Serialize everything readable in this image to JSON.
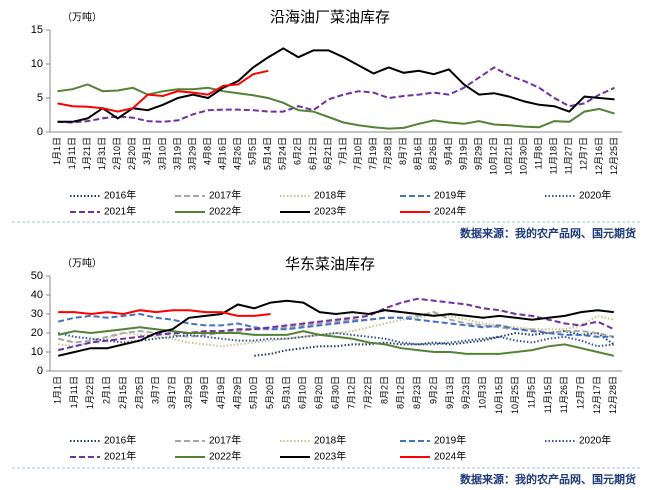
{
  "chart_data": [
    {
      "type": "line",
      "title": "沿海油厂菜油库存",
      "y_label": "（万吨）",
      "source": "数据来源：我的农产品网、国元期货",
      "categories": [
        "1月1日",
        "1月11日",
        "1月21日",
        "1月31日",
        "2月10日",
        "2月20日",
        "3月1日",
        "3月10日",
        "3月19日",
        "3月29日",
        "4月8日",
        "4月16日",
        "4月26日",
        "5月5日",
        "5月14日",
        "5月24日",
        "6月2日",
        "6月12日",
        "6月21日",
        "7月1日",
        "7月10日",
        "7月19日",
        "7月28日",
        "8月7日",
        "8月16日",
        "8月26日",
        "9月4日",
        "9月19日",
        "9月29日",
        "10月12日",
        "10月21日",
        "10月30日",
        "11月8日",
        "11月18日",
        "11月27日",
        "12月7日",
        "12月16日",
        "12月25日"
      ],
      "ylim": [
        0,
        15
      ],
      "yticks": [
        0,
        5,
        10,
        15
      ],
      "series": [
        {
          "name": "2016年",
          "color": "#1f3864",
          "style": "dotted",
          "values": [
            null,
            null,
            null,
            null,
            null,
            null,
            null,
            null,
            null,
            null,
            null,
            null,
            null,
            null,
            null,
            null,
            null,
            null,
            null,
            null,
            null,
            null,
            null,
            null,
            null,
            null,
            null,
            null,
            null,
            null,
            null,
            null,
            null,
            null,
            null,
            null,
            null,
            null
          ]
        },
        {
          "name": "2017年",
          "color": "#a6a6a6",
          "style": "dashed",
          "values": [
            null,
            null,
            null,
            null,
            null,
            null,
            null,
            null,
            null,
            null,
            null,
            null,
            null,
            null,
            null,
            null,
            null,
            null,
            null,
            null,
            null,
            null,
            null,
            null,
            null,
            null,
            null,
            null,
            null,
            null,
            null,
            null,
            null,
            null,
            null,
            null,
            null,
            null
          ]
        },
        {
          "name": "2018年",
          "color": "#c9c08a",
          "style": "dotted",
          "values": [
            null,
            null,
            null,
            null,
            null,
            null,
            null,
            null,
            null,
            null,
            null,
            null,
            null,
            null,
            null,
            null,
            null,
            null,
            null,
            null,
            null,
            null,
            null,
            null,
            null,
            null,
            null,
            null,
            null,
            null,
            null,
            null,
            null,
            null,
            null,
            null,
            null,
            null
          ]
        },
        {
          "name": "2019年",
          "color": "#4472c4",
          "style": "dashed",
          "values": [
            null,
            null,
            null,
            null,
            null,
            null,
            null,
            null,
            null,
            null,
            null,
            null,
            null,
            null,
            null,
            null,
            null,
            null,
            null,
            null,
            null,
            null,
            null,
            null,
            null,
            null,
            null,
            null,
            null,
            null,
            null,
            null,
            null,
            null,
            null,
            null,
            null,
            null
          ]
        },
        {
          "name": "2020年",
          "color": "#2f5597",
          "style": "dotted",
          "values": [
            null,
            null,
            null,
            null,
            null,
            null,
            null,
            null,
            null,
            null,
            null,
            null,
            null,
            null,
            null,
            null,
            null,
            null,
            null,
            null,
            null,
            null,
            null,
            null,
            null,
            null,
            null,
            null,
            null,
            null,
            null,
            null,
            null,
            null,
            null,
            null,
            null,
            null
          ]
        },
        {
          "name": "2021年",
          "color": "#7030a0",
          "style": "dashed",
          "values": [
            1.5,
            1.4,
            1.6,
            2,
            2.3,
            2.1,
            1.6,
            1.5,
            1.7,
            2.6,
            3.2,
            3.3,
            3.3,
            3.2,
            3,
            3,
            3.8,
            3.2,
            4.8,
            5.5,
            6,
            5.8,
            5,
            5.3,
            5.5,
            5.8,
            5.5,
            6.5,
            8,
            9.5,
            8.3,
            7.5,
            6.5,
            5,
            3.8,
            4.2,
            5.5,
            6.5
          ]
        },
        {
          "name": "2022年",
          "color": "#548235",
          "style": "solid",
          "values": [
            6,
            6.3,
            7,
            6,
            6.1,
            6.5,
            5.5,
            6,
            6.3,
            6.3,
            6.5,
            6,
            5.7,
            5.4,
            5,
            4.3,
            3.2,
            3,
            2.2,
            1.4,
            1,
            0.7,
            0.5,
            0.6,
            1.2,
            1.7,
            1.4,
            1.2,
            1.6,
            1.1,
            1,
            0.8,
            0.7,
            1.6,
            1.5,
            3,
            3.4,
            2.7
          ]
        },
        {
          "name": "2023年",
          "color": "#000000",
          "style": "solid",
          "values": [
            1.5,
            1.5,
            2,
            3.5,
            2,
            3.5,
            3.2,
            4,
            5,
            5.5,
            5,
            6.5,
            7.5,
            9.5,
            11,
            12.3,
            11,
            12,
            12,
            11,
            9.8,
            8.6,
            9.5,
            8.7,
            9,
            8.5,
            9.2,
            7,
            5.5,
            5.7,
            5.2,
            4.5,
            4,
            3.8,
            3,
            5.2,
            5,
            4.8
          ]
        },
        {
          "name": "2024年",
          "color": "#ff0000",
          "style": "solid",
          "values": [
            4.2,
            3.8,
            3.7,
            3.5,
            3,
            3.5,
            5.5,
            5.3,
            6,
            5.8,
            5.5,
            6.8,
            7,
            8.5,
            9,
            null,
            null,
            null,
            null,
            null,
            null,
            null,
            null,
            null,
            null,
            null,
            null,
            null,
            null,
            null,
            null,
            null,
            null,
            null,
            null,
            null,
            null,
            null
          ]
        }
      ]
    },
    {
      "type": "line",
      "title": "华东菜油库存",
      "y_label": "（万吨）",
      "source": "数据来源：我的农产品网、国元期货",
      "categories": [
        "1月1日",
        "1月11日",
        "1月22日",
        "2月1日",
        "2月15日",
        "2月25日",
        "3月7日",
        "3月17日",
        "3月29日",
        "4月9日",
        "4月19日",
        "4月29日",
        "5月10日",
        "5月20日",
        "5月31日",
        "6月10日",
        "6月20日",
        "6月30日",
        "7月12日",
        "7月22日",
        "8月2日",
        "8月12日",
        "8月23日",
        "9月2日",
        "9月13日",
        "9月23日",
        "10月3日",
        "10月15日",
        "10月25日",
        "11月5日",
        "11月15日",
        "11月26日",
        "12月7日",
        "12月17日",
        "12月28日"
      ],
      "ylim": [
        0,
        50
      ],
      "yticks": [
        0,
        10,
        20,
        30,
        40,
        50
      ],
      "series": [
        {
          "name": "2016年",
          "color": "#1f3864",
          "style": "dotted",
          "values": [
            null,
            null,
            null,
            null,
            null,
            null,
            null,
            null,
            null,
            null,
            null,
            null,
            8,
            9,
            11,
            12,
            13,
            13,
            14,
            14,
            15,
            14,
            14,
            15,
            14,
            15,
            16,
            18,
            20,
            19,
            20,
            21,
            19,
            20,
            14
          ]
        },
        {
          "name": "2017年",
          "color": "#a6a6a6",
          "style": "dashed",
          "values": [
            17,
            15,
            16,
            18,
            20,
            21,
            20,
            19,
            18,
            19,
            20,
            21,
            22,
            22,
            23,
            24,
            25,
            26,
            27,
            27,
            28,
            28,
            29,
            31,
            27,
            25,
            24,
            23,
            22,
            22,
            20,
            21,
            21,
            20,
            18
          ]
        },
        {
          "name": "2018年",
          "color": "#c9c08a",
          "style": "dotted",
          "values": [
            14,
            13,
            15,
            17,
            20,
            19,
            18,
            17,
            15,
            14,
            13,
            14,
            15,
            16,
            17,
            18,
            19,
            20,
            21,
            23,
            25,
            27,
            28,
            30,
            29,
            27,
            25,
            24,
            23,
            22,
            22,
            22,
            24,
            29,
            27
          ]
        },
        {
          "name": "2019年",
          "color": "#4472c4",
          "style": "dashed",
          "values": [
            26,
            28,
            29,
            28,
            29,
            30,
            28,
            27,
            25,
            24,
            24,
            25,
            23,
            22,
            22,
            23,
            24,
            25,
            26,
            27,
            28,
            28,
            27,
            26,
            25,
            24,
            23,
            24,
            22,
            21,
            20,
            19,
            19,
            18,
            18
          ]
        },
        {
          "name": "2020年",
          "color": "#2f5597",
          "style": "dotted",
          "values": [
            20,
            18,
            17,
            16,
            15,
            16,
            17,
            18,
            19,
            18,
            17,
            16,
            16,
            17,
            17,
            18,
            19,
            20,
            19,
            18,
            17,
            15,
            14,
            14,
            15,
            16,
            17,
            18,
            16,
            15,
            17,
            18,
            16,
            13,
            14
          ]
        },
        {
          "name": "2021年",
          "color": "#7030a0",
          "style": "dashed",
          "values": [
            11,
            13,
            15,
            16,
            17,
            18,
            19,
            20,
            20,
            21,
            21,
            22,
            22,
            23,
            24,
            25,
            26,
            27,
            28,
            29,
            33,
            36,
            38,
            37,
            36,
            35,
            33,
            32,
            30,
            29,
            27,
            25,
            24,
            26,
            22
          ]
        },
        {
          "name": "2022年",
          "color": "#548235",
          "style": "solid",
          "values": [
            19,
            21,
            20,
            21,
            22,
            23,
            22,
            21,
            20,
            20,
            20,
            20,
            19,
            19,
            19,
            21,
            19,
            18,
            17,
            15,
            14,
            12,
            11,
            10,
            10,
            9,
            9,
            9,
            10,
            11,
            13,
            14,
            12,
            10,
            8
          ]
        },
        {
          "name": "2023年",
          "color": "#000000",
          "style": "solid",
          "values": [
            8,
            10,
            12,
            12,
            14,
            16,
            20,
            22,
            28,
            29,
            30,
            35,
            33,
            36,
            37,
            36,
            31,
            30,
            31,
            30,
            32,
            31,
            30,
            29,
            30,
            29,
            28,
            29,
            28,
            27,
            28,
            29,
            31,
            32,
            31
          ]
        },
        {
          "name": "2024年",
          "color": "#ff0000",
          "style": "solid",
          "values": [
            31,
            31,
            30,
            31,
            30,
            32,
            31,
            32,
            32,
            31,
            31,
            29,
            29,
            30,
            null,
            null,
            null,
            null,
            null,
            null,
            null,
            null,
            null,
            null,
            null,
            null,
            null,
            null,
            null,
            null,
            null,
            null,
            null,
            null,
            null
          ]
        }
      ]
    }
  ]
}
